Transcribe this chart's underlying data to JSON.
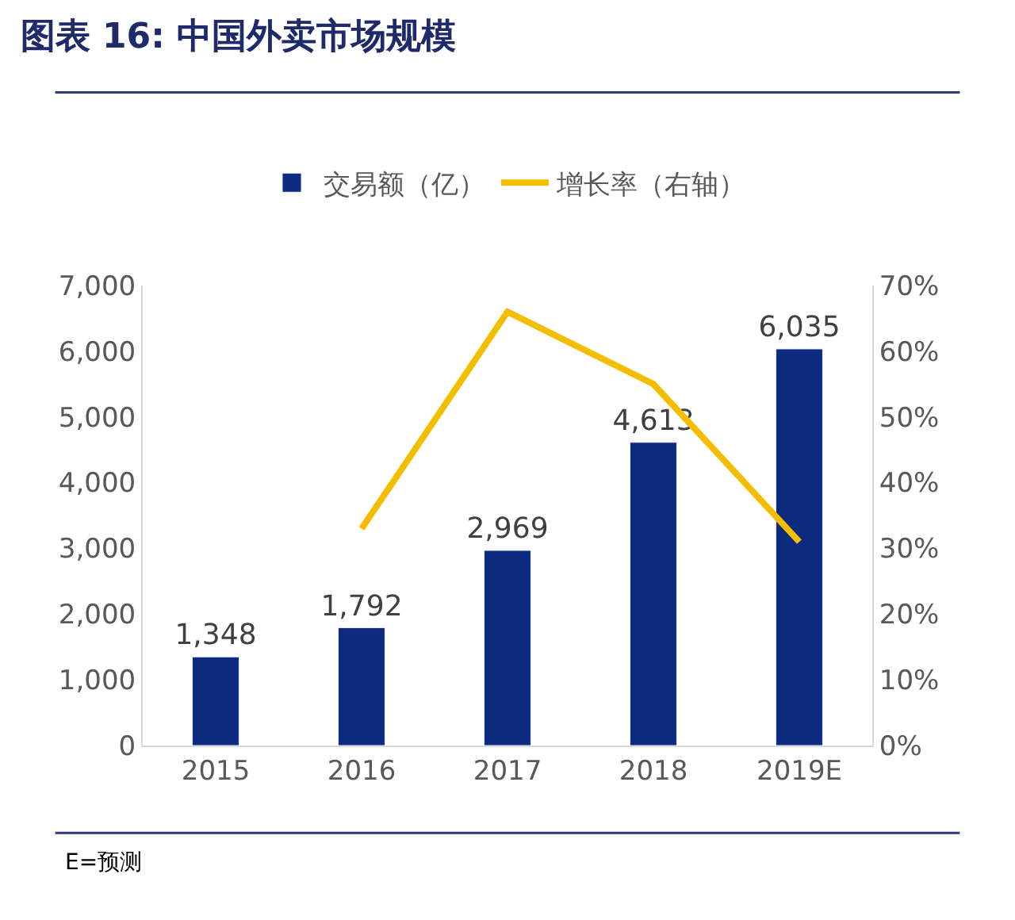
{
  "chart_data": {
    "type": "bar",
    "title": "图表 16: 中国外卖市场规模",
    "categories": [
      "2015",
      "2016",
      "2017",
      "2018",
      "2019E"
    ],
    "series": [
      {
        "name": "交易额（亿）",
        "color": "#0d2a7e",
        "values": [
          1348,
          1792,
          2969,
          4613,
          6035
        ],
        "value_labels": [
          "1,348",
          "1,792",
          "2,969",
          "4,613",
          "6,035"
        ]
      },
      {
        "name": "增长率（右轴）",
        "type": "line",
        "axis": "y2",
        "color": "#f5bd00",
        "values": [
          null,
          33,
          66,
          55,
          31
        ]
      }
    ],
    "ylim": [
      0,
      7000
    ],
    "yticks": [
      {
        "value": 0,
        "label": "0"
      },
      {
        "value": 1000,
        "label": "1,000"
      },
      {
        "value": 2000,
        "label": "2,000"
      },
      {
        "value": 3000,
        "label": "3,000"
      },
      {
        "value": 4000,
        "label": "4,000"
      },
      {
        "value": 5000,
        "label": "5,000"
      },
      {
        "value": 6000,
        "label": "6,000"
      },
      {
        "value": 7000,
        "label": "7,000"
      }
    ],
    "y2lim": [
      0,
      70
    ],
    "y2ticks": [
      {
        "value": 0,
        "label": "0%"
      },
      {
        "value": 10,
        "label": "10%"
      },
      {
        "value": 20,
        "label": "20%"
      },
      {
        "value": 30,
        "label": "30%"
      },
      {
        "value": 40,
        "label": "40%"
      },
      {
        "value": 50,
        "label": "50%"
      },
      {
        "value": 60,
        "label": "60%"
      },
      {
        "value": 70,
        "label": "70%"
      }
    ],
    "annotations": [
      "E=预测"
    ],
    "legend": "top",
    "marker": "none",
    "line_style": "solid"
  }
}
